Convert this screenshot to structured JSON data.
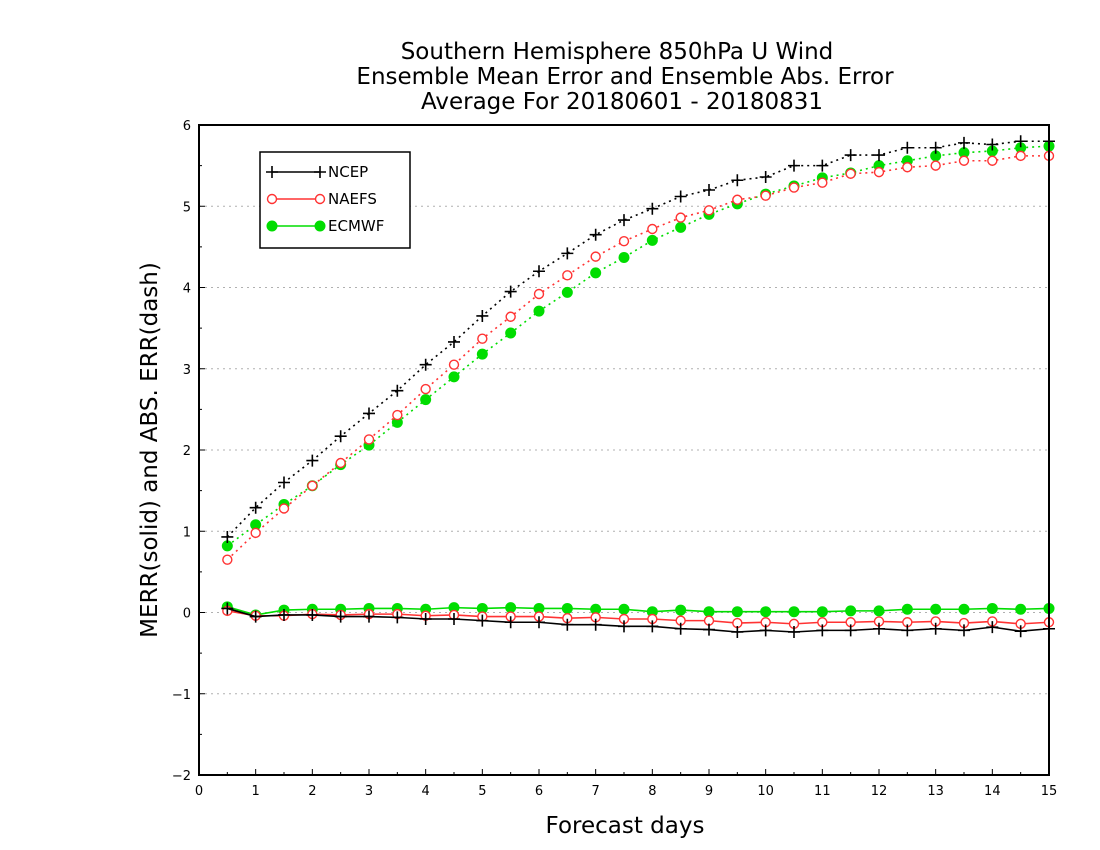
{
  "chart_data": {
    "type": "line",
    "title": [
      "Southern Hemisphere 850hPa U Wind",
      "Ensemble Mean Error and Ensemble Abs. Error",
      "Average For 20180601 - 20180831"
    ],
    "xlabel": "Forecast days",
    "ylabel": "MERR(solid) and ABS. ERR(dash)",
    "xlim": [
      0,
      15
    ],
    "ylim": [
      -2,
      6
    ],
    "xticks": [
      "0",
      "1",
      "2",
      "3",
      "4",
      "5",
      "6",
      "7",
      "8",
      "9",
      "10",
      "11",
      "12",
      "13",
      "14",
      "15"
    ],
    "yticks": [
      "−2",
      "−1",
      "0",
      "1",
      "2",
      "3",
      "4",
      "5",
      "6"
    ],
    "grid": "horizontal dotted",
    "legend_position": "top-left",
    "x": [
      0.5,
      1,
      1.5,
      2,
      2.5,
      3,
      3.5,
      4,
      4.5,
      5,
      5.5,
      6,
      6.5,
      7,
      7.5,
      8,
      8.5,
      9,
      9.5,
      10,
      10.5,
      11,
      11.5,
      12,
      12.5,
      13,
      13.5,
      14,
      14.5,
      15
    ],
    "series": [
      {
        "name": "NCEP",
        "color": "#000000",
        "marker": "plus",
        "merr": [
          0.05,
          -0.05,
          -0.03,
          -0.03,
          -0.05,
          -0.05,
          -0.06,
          -0.08,
          -0.08,
          -0.1,
          -0.12,
          -0.12,
          -0.15,
          -0.15,
          -0.17,
          -0.17,
          -0.2,
          -0.21,
          -0.24,
          -0.22,
          -0.24,
          -0.22,
          -0.22,
          -0.2,
          -0.22,
          -0.2,
          -0.22,
          -0.18,
          -0.23,
          -0.2
        ],
        "abs_err": [
          0.93,
          1.29,
          1.6,
          1.87,
          2.17,
          2.45,
          2.73,
          3.05,
          3.33,
          3.65,
          3.95,
          4.2,
          4.42,
          4.65,
          4.83,
          4.97,
          5.12,
          5.2,
          5.32,
          5.36,
          5.5,
          5.5,
          5.63,
          5.63,
          5.72,
          5.72,
          5.78,
          5.76,
          5.8,
          5.8
        ]
      },
      {
        "name": "NAEFS",
        "color": "#ff3333",
        "marker": "open-circle",
        "merr": [
          0.02,
          -0.04,
          -0.04,
          -0.02,
          -0.03,
          -0.02,
          -0.02,
          -0.04,
          -0.03,
          -0.05,
          -0.05,
          -0.05,
          -0.07,
          -0.06,
          -0.08,
          -0.08,
          -0.1,
          -0.1,
          -0.13,
          -0.12,
          -0.14,
          -0.12,
          -0.12,
          -0.11,
          -0.12,
          -0.11,
          -0.13,
          -0.11,
          -0.14,
          -0.12
        ],
        "abs_err": [
          0.65,
          0.98,
          1.28,
          1.56,
          1.84,
          2.13,
          2.43,
          2.75,
          3.05,
          3.37,
          3.64,
          3.92,
          4.15,
          4.38,
          4.57,
          4.72,
          4.86,
          4.95,
          5.08,
          5.13,
          5.23,
          5.29,
          5.4,
          5.42,
          5.48,
          5.5,
          5.56,
          5.56,
          5.62,
          5.62
        ]
      },
      {
        "name": "ECMWF",
        "color": "#00dd00",
        "marker": "filled-circle",
        "merr": [
          0.07,
          -0.03,
          0.03,
          0.04,
          0.04,
          0.05,
          0.05,
          0.04,
          0.06,
          0.05,
          0.06,
          0.05,
          0.05,
          0.04,
          0.04,
          0.01,
          0.03,
          0.01,
          0.01,
          0.01,
          0.01,
          0.01,
          0.02,
          0.02,
          0.04,
          0.04,
          0.04,
          0.05,
          0.04,
          0.05
        ],
        "abs_err": [
          0.82,
          1.08,
          1.33,
          1.56,
          1.82,
          2.06,
          2.34,
          2.62,
          2.9,
          3.18,
          3.44,
          3.71,
          3.94,
          4.18,
          4.37,
          4.58,
          4.74,
          4.9,
          5.03,
          5.15,
          5.25,
          5.35,
          5.41,
          5.5,
          5.56,
          5.62,
          5.66,
          5.68,
          5.72,
          5.74
        ]
      }
    ]
  }
}
